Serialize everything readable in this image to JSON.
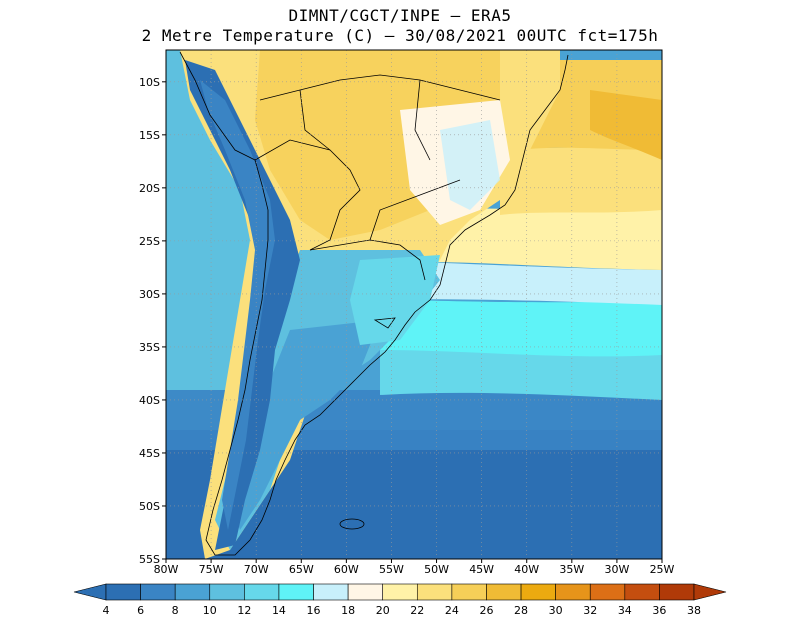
{
  "header": {
    "line1": "DIMNT/CGCT/INPE –  ERA5",
    "line2": "2 Metre Temperature (C) –  30/08/2021 00UTC fct=175h"
  },
  "map": {
    "lat_ticks": [
      "10S",
      "15S",
      "20S",
      "25S",
      "30S",
      "35S",
      "40S",
      "45S",
      "50S",
      "55S"
    ],
    "lon_ticks": [
      "80W",
      "75W",
      "70W",
      "65W",
      "60W",
      "55W",
      "50W",
      "45W",
      "40W",
      "35W",
      "30W",
      "25W"
    ],
    "extent": {
      "lon": [
        -80,
        -25
      ],
      "lat": [
        -55,
        -7
      ]
    }
  },
  "colorbar": {
    "labels": [
      "4",
      "6",
      "8",
      "10",
      "12",
      "14",
      "16",
      "18",
      "20",
      "22",
      "24",
      "26",
      "28",
      "30",
      "32",
      "34",
      "36",
      "38"
    ],
    "colors": [
      "#2c6fb3",
      "#3a84c4",
      "#4aa2d4",
      "#5ec0df",
      "#66d8ea",
      "#5ff3f7",
      "#c8f0fb",
      "#fff6e6",
      "#fff2a8",
      "#fbe07c",
      "#f6cf58",
      "#f0bb35",
      "#ecaa10",
      "#e6941a",
      "#dc6f16",
      "#c44e0f",
      "#b03a08"
    ]
  }
}
